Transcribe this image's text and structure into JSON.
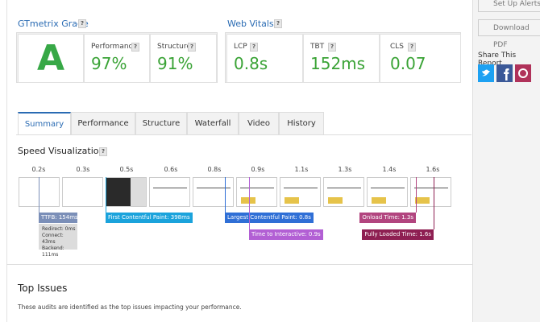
{
  "help_icon": "?",
  "grade": {
    "title": "GTmetrix Grade",
    "letter": "A",
    "metrics": [
      {
        "label": "Performance",
        "value": "97%"
      },
      {
        "label": "Structure",
        "value": "91%"
      }
    ]
  },
  "web_vitals": {
    "title": "Web Vitals",
    "metrics": [
      {
        "label": "LCP",
        "value": "0.8s"
      },
      {
        "label": "TBT",
        "value": "152ms"
      },
      {
        "label": "CLS",
        "value": "0.07"
      }
    ]
  },
  "sidebar": {
    "buttons": [
      "Set Up Alerts",
      "Download PDF"
    ],
    "share_title": "Share This Report"
  },
  "tabs": [
    "Summary",
    "Performance",
    "Structure",
    "Waterfall",
    "Video",
    "History"
  ],
  "speed_visualization": {
    "title": "Speed Visualization",
    "frame_times": [
      "0.2s",
      "0.3s",
      "0.5s",
      "0.6s",
      "0.8s",
      "0.9s",
      "1.1s",
      "1.3s",
      "1.4s",
      "1.6s"
    ],
    "markers": [
      {
        "label": "TTFB: 154ms",
        "details": [
          "Redirect: 0ms",
          "Connect: 43ms",
          "Backend: 111ms"
        ]
      },
      {
        "label": "First Contentful Paint: 398ms"
      },
      {
        "label": "Largest Contentful Paint: 0.8s"
      },
      {
        "label": "Time to Interactive: 0.9s"
      },
      {
        "label": "Onload Time: 1.3s"
      },
      {
        "label": "Fully Loaded Time: 1.6s"
      }
    ]
  },
  "top_issues": {
    "title": "Top Issues",
    "description": "These audits are identified as the top issues impacting your performance."
  }
}
